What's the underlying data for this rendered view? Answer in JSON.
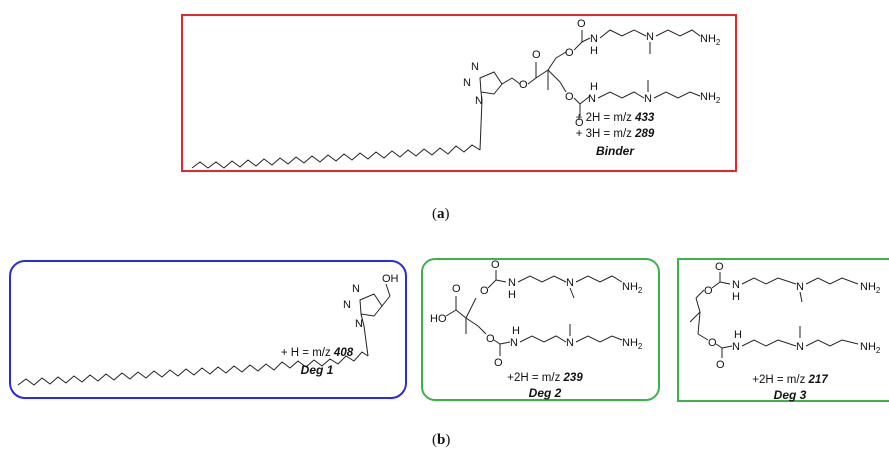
{
  "panels": {
    "binder": {
      "mz_line_1_prefix": "+ 2H = m/z ",
      "mz_line_1_value": "433",
      "mz_line_2_prefix": "+ 3H = m/z ",
      "mz_line_2_value": "289",
      "name": "Binder",
      "border_color": "#e0282e"
    },
    "deg1": {
      "mz_prefix": "+ H = m/z ",
      "mz_value": "408",
      "name": "Deg 1",
      "border_color": "#2b2bd8"
    },
    "deg2": {
      "mz_prefix": "+2H = m/z ",
      "mz_value": "239",
      "name": "Deg 2",
      "border_color": "#3cb34a"
    },
    "deg3": {
      "mz_prefix": "+2H = m/z ",
      "mz_value": "217",
      "name": "Deg 3",
      "border_color": "#3cb34a"
    }
  },
  "captions": {
    "a": "a",
    "b": "b"
  },
  "atoms": {
    "O": "O",
    "N": "N",
    "H": "H",
    "NH2": "NH",
    "sub2": "2",
    "OH": "OH",
    "HO": "HO"
  }
}
